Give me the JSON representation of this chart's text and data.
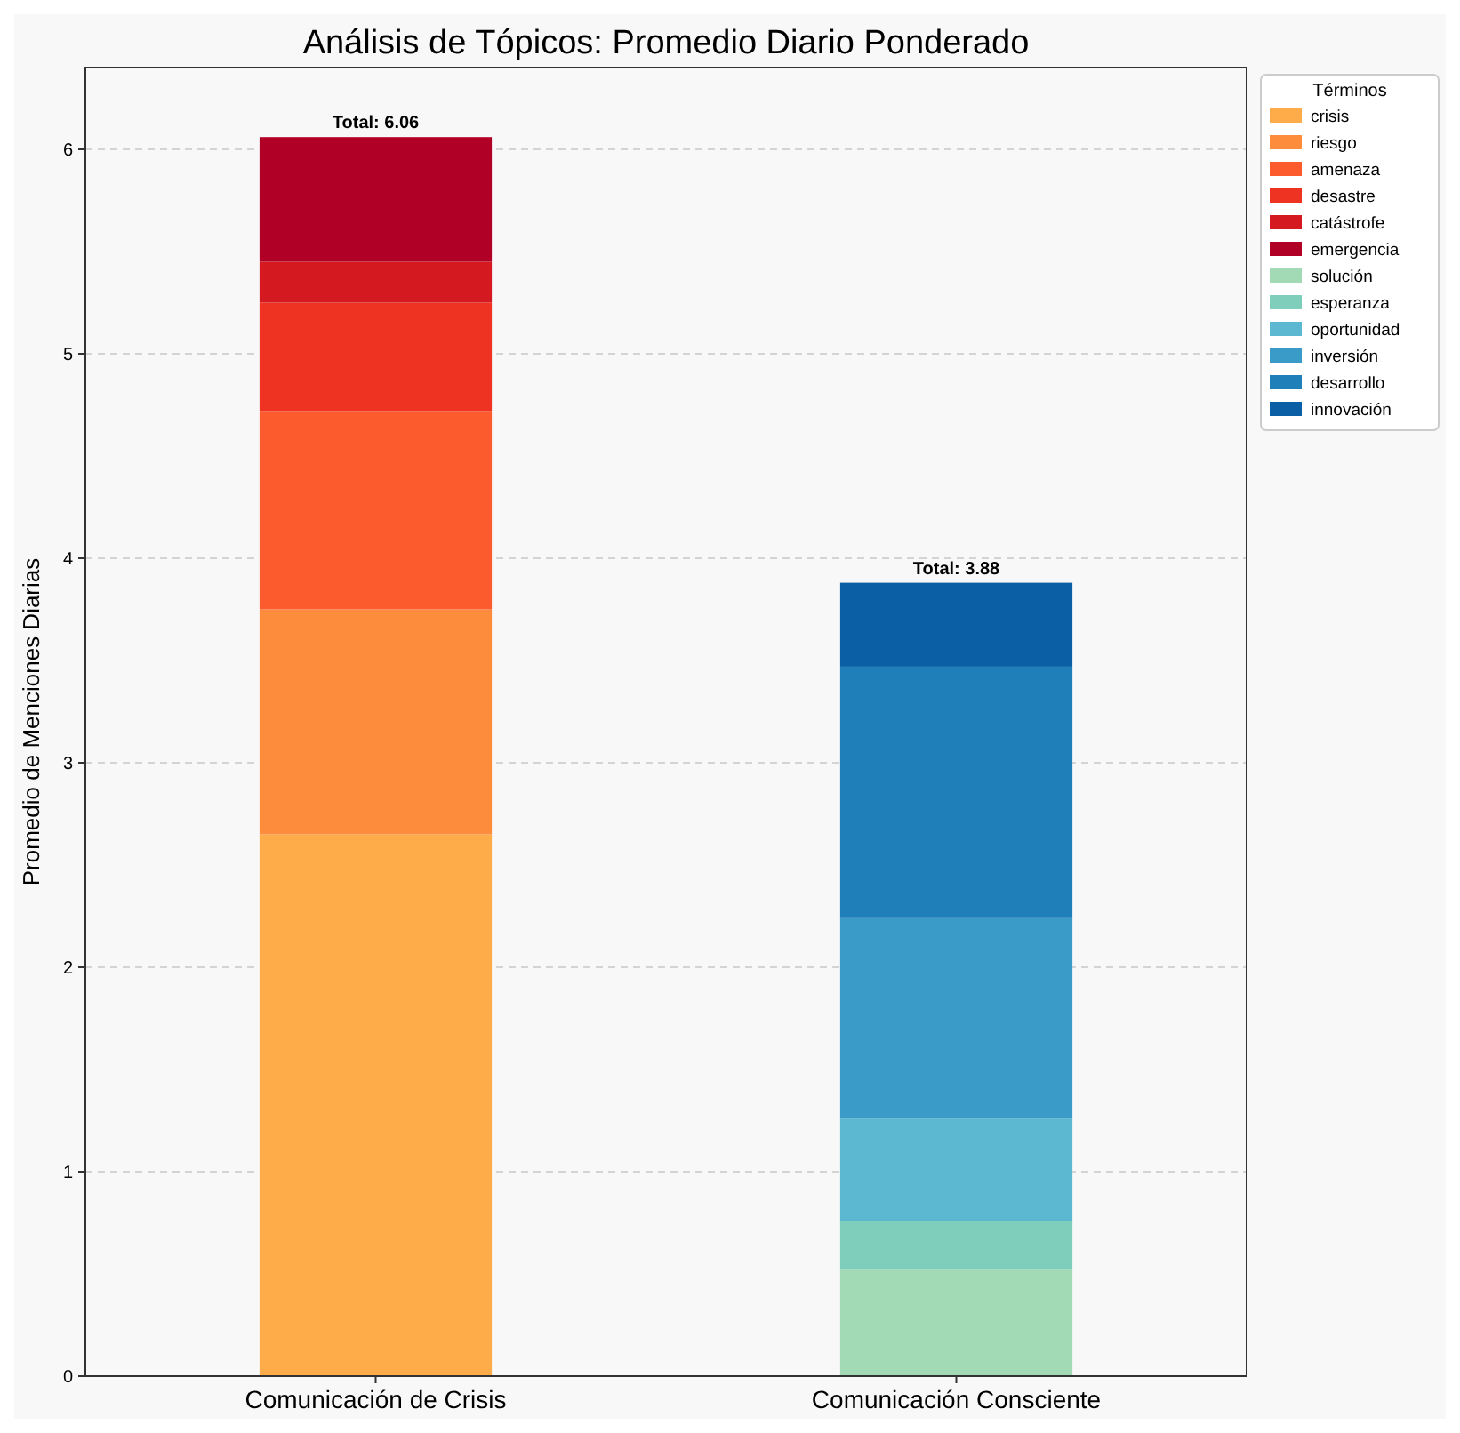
{
  "chart_data": {
    "type": "bar",
    "title": "Análisis de Tópicos: Promedio Diario Ponderado",
    "ylabel": "Promedio de Menciones Diarias",
    "legend_title": "Términos",
    "categories": [
      "Comunicación de Crisis",
      "Comunicación Consciente"
    ],
    "stacked": true,
    "ylim": [
      0,
      6.4
    ],
    "yticks": [
      0,
      1,
      2,
      3,
      4,
      5,
      6
    ],
    "grid": "y",
    "legend": "top right",
    "totals": [
      "Total: 6.06",
      "Total: 3.88"
    ],
    "series": [
      {
        "name": "crisis",
        "color": "#feab49",
        "values": [
          2.65,
          null
        ]
      },
      {
        "name": "riesgo",
        "color": "#fd8c3c",
        "values": [
          1.1,
          null
        ]
      },
      {
        "name": "amenaza",
        "color": "#fc5b2e",
        "values": [
          0.97,
          null
        ]
      },
      {
        "name": "desastre",
        "color": "#ef3323",
        "values": [
          0.53,
          null
        ]
      },
      {
        "name": "catástrofe",
        "color": "#d41a20",
        "values": [
          0.2,
          null
        ]
      },
      {
        "name": "emergencia",
        "color": "#b10026",
        "values": [
          0.61,
          null
        ]
      },
      {
        "name": "solución",
        "color": "#a1dab4",
        "values": [
          null,
          0.52
        ]
      },
      {
        "name": "esperanza",
        "color": "#7fcdbb",
        "values": [
          null,
          0.24
        ]
      },
      {
        "name": "oportunidad",
        "color": "#5bb8d0",
        "values": [
          null,
          0.5
        ]
      },
      {
        "name": "inversión",
        "color": "#3a9bc8",
        "values": [
          null,
          0.98
        ]
      },
      {
        "name": "desarrollo",
        "color": "#1f7fb8",
        "values": [
          null,
          1.23
        ]
      },
      {
        "name": "innovación",
        "color": "#0b5fa5",
        "values": [
          null,
          0.41
        ]
      }
    ]
  }
}
